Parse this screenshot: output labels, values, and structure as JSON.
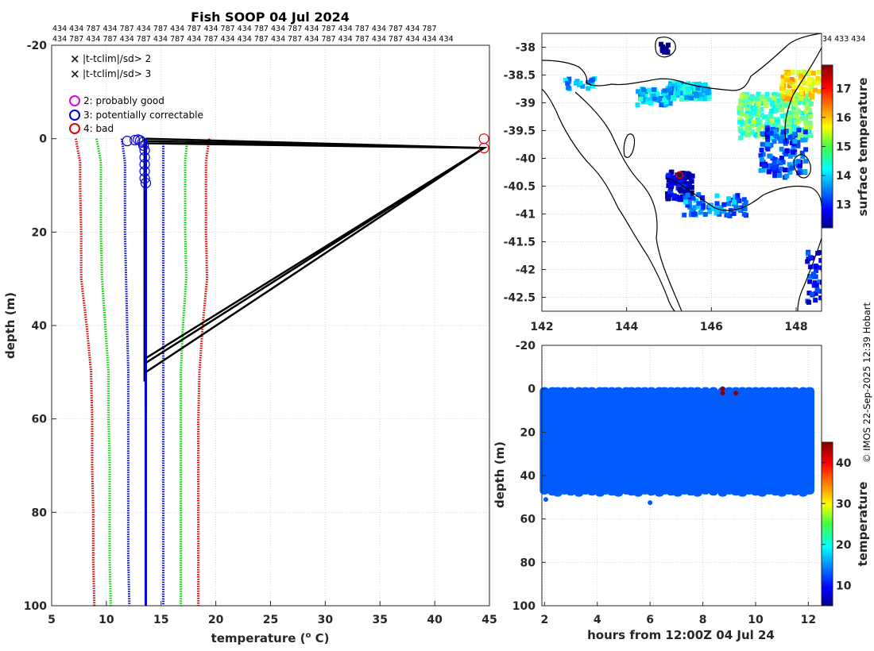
{
  "chart_data": [
    {
      "type": "line",
      "id": "profile",
      "title": "Fish SOOP 04 Jul 2024",
      "xlabel": "temperature (",
      "xlabel_sup": "o",
      "xlabel_end": " C)",
      "ylabel": "depth (m)",
      "xlim": [
        5,
        45
      ],
      "ylim": [
        -20,
        100
      ],
      "xticks": [
        "5",
        "10",
        "15",
        "20",
        "25",
        "30",
        "35",
        "40",
        "45"
      ],
      "yticks": [
        "-20",
        "0",
        "20",
        "40",
        "60",
        "80",
        "100"
      ],
      "grid": true,
      "platform_ids_row1": "434 434 787 434 787 434 787 434 787 434 787 434 787 434 787 434 787 434 787 434 787 434 787",
      "platform_ids_row2": "434 787 434 787 434 787 434 787 434 787 434 434 787 434 787 434 787 434 787 434 787 434 434 434",
      "legend": [
        {
          "label": "|t-tclim|/sd> 2",
          "marker": "x",
          "color": "#00e000"
        },
        {
          "label": "|t-tclim|/sd> 3",
          "marker": "x",
          "color": "#e00000"
        },
        {
          "label": "2: probably good",
          "marker": "o",
          "color": "#e000e0"
        },
        {
          "label": "3: potentially correctable",
          "marker": "o",
          "color": "#0000e0"
        },
        {
          "label": "4: bad",
          "marker": "o",
          "color": "#e00000"
        }
      ],
      "climatology_bounds": {
        "depth": [
          0,
          5,
          10,
          20,
          30,
          40,
          50,
          60,
          70,
          80,
          90,
          100
        ],
        "minus3sd": [
          7.2,
          7.6,
          7.6,
          7.7,
          7.7,
          8.2,
          8.6,
          8.7,
          8.7,
          8.8,
          8.8,
          8.9
        ],
        "minus2sd": [
          9.1,
          9.5,
          9.5,
          9.5,
          9.6,
          9.9,
          10.2,
          10.2,
          10.3,
          10.3,
          10.3,
          10.4
        ],
        "plus2sd": [
          17.4,
          17.2,
          17.2,
          17.2,
          17.3,
          17.0,
          16.8,
          16.8,
          16.8,
          16.8,
          16.8,
          16.8
        ],
        "plus3sd": [
          19.4,
          19.1,
          19.1,
          19.1,
          19.2,
          18.8,
          18.5,
          18.4,
          18.4,
          18.4,
          18.4,
          18.4
        ],
        "minus1sd": [
          11.4,
          11.7,
          11.7,
          11.7,
          11.8,
          11.9,
          12.0,
          12.0,
          12.0,
          12.0,
          12.0,
          12.1
        ],
        "plus1sd": [
          15.2,
          15.2,
          15.2,
          15.2,
          15.2,
          15.2,
          15.2,
          15.2,
          15.2,
          15.2,
          15.2,
          15.2
        ]
      },
      "profiles": [
        {
          "t": [
            13.6,
            44.5,
            13.6
          ],
          "depth": [
            0,
            2,
            47
          ]
        },
        {
          "t": [
            13.6,
            44.5,
            13.6
          ],
          "depth": [
            0.5,
            2,
            48
          ]
        },
        {
          "t": [
            13.6,
            44.5,
            13.6
          ],
          "depth": [
            1,
            2,
            50
          ]
        }
      ],
      "profile_columns": [
        {
          "t": 13.5,
          "depth_max": 52
        },
        {
          "t": 13.6,
          "depth_max": 58
        },
        {
          "t": 13.6,
          "depth_max": 100
        }
      ],
      "flag3_points": [
        {
          "t": 11.9,
          "depth": 0.5
        },
        {
          "t": 12.6,
          "depth": 0.3
        },
        {
          "t": 12.9,
          "depth": 0.2
        },
        {
          "t": 13.1,
          "depth": 0.4
        },
        {
          "t": 13.3,
          "depth": 0.8
        },
        {
          "t": 13.4,
          "depth": 1.5
        },
        {
          "t": 13.5,
          "depth": 2.5
        },
        {
          "t": 13.5,
          "depth": 4
        },
        {
          "t": 13.5,
          "depth": 5.5
        },
        {
          "t": 13.5,
          "depth": 7
        },
        {
          "t": 13.5,
          "depth": 8.5
        },
        {
          "t": 13.6,
          "depth": 9.5
        }
      ],
      "flag4_points": [
        {
          "t": 44.5,
          "depth": 0
        },
        {
          "t": 44.5,
          "depth": 2
        }
      ]
    },
    {
      "type": "heatmap",
      "id": "map",
      "colorbar_label": "surface temperature",
      "xlim": [
        142,
        148.6
      ],
      "ylim": [
        -42.75,
        -37.75
      ],
      "xticks": [
        "142",
        "144",
        "146",
        "148"
      ],
      "yticks": [
        "-38",
        "-38.5",
        "-39",
        "-39.5",
        "-40",
        "-40.5",
        "-41",
        "-41.5",
        "-42",
        "-42.5"
      ],
      "colorbar_ticks": [
        "13",
        "14",
        "15",
        "16",
        "17"
      ],
      "colorbar_range": [
        12.2,
        17.8
      ],
      "track_marker_lon": 145.25,
      "track_marker_lat": -40.3,
      "platform_ids_right": "34 433 434"
    },
    {
      "type": "scatter",
      "id": "section",
      "xlabel": "hours from 12:00Z 04 Jul 24",
      "ylabel": "depth (m)",
      "xlim": [
        1.9,
        12.5
      ],
      "ylim": [
        -20,
        100
      ],
      "xticks": [
        "2",
        "4",
        "6",
        "8",
        "10",
        "12"
      ],
      "yticks": [
        "-20",
        "0",
        "20",
        "40",
        "60",
        "80",
        "100"
      ],
      "colorbar_label": "temperature",
      "colorbar_ticks": [
        "10",
        "20",
        "30",
        "40"
      ],
      "colorbar_range": [
        5,
        45
      ],
      "profile_times": [
        2.0,
        2.3,
        2.5,
        2.75,
        3.0,
        3.3,
        3.55,
        3.8,
        4.1,
        4.3,
        4.55,
        4.8,
        5.1,
        5.3,
        5.55,
        5.8,
        6.05,
        6.35,
        6.55,
        6.8,
        7.05,
        7.3,
        7.55,
        7.8,
        8.1,
        8.4,
        8.75,
        9.0,
        9.25,
        9.5,
        9.75,
        10.0,
        10.25,
        10.5,
        10.75,
        11.0,
        11.25,
        11.5,
        11.8,
        12.05
      ],
      "typical_depth": 48,
      "profile_temperature": 13.6,
      "hot_points": [
        {
          "h": 8.75,
          "d": 0
        },
        {
          "h": 8.75,
          "d": 2
        },
        {
          "h": 9.25,
          "d": 2
        }
      ]
    }
  ],
  "credit": "© IMOS 22-Sep-2025 12:39 Hobart"
}
